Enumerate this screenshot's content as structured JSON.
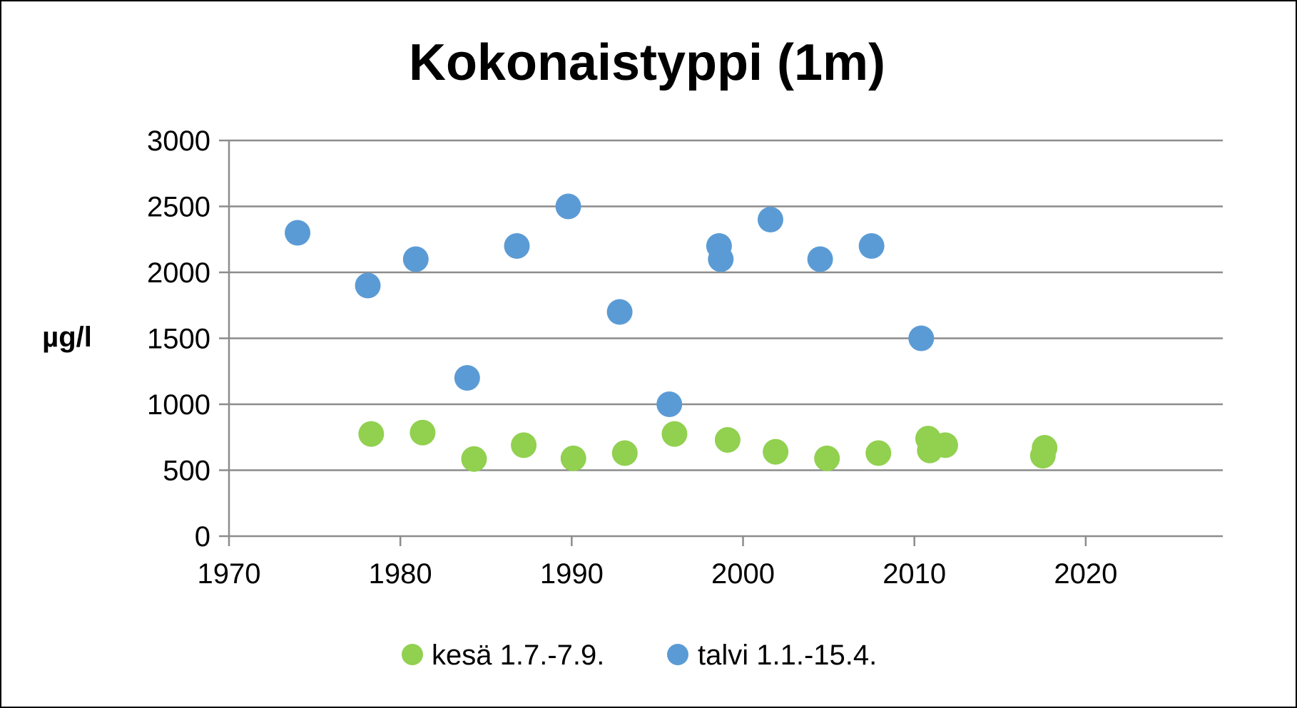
{
  "chart_data": {
    "type": "scatter",
    "title": "Kokonaistyppi (1m)",
    "xlabel": "",
    "ylabel": "µg/l",
    "xlim": [
      1970,
      2028
    ],
    "ylim": [
      0,
      3000
    ],
    "x_ticks": [
      1970,
      1980,
      1990,
      2000,
      2010,
      2020
    ],
    "y_ticks": [
      0,
      500,
      1000,
      1500,
      2000,
      2500,
      3000
    ],
    "grid": true,
    "legend_position": "bottom",
    "series": [
      {
        "name": "kesä 1.7.-7.9.",
        "color": "#92D050",
        "points": [
          {
            "x": 1978.3,
            "y": 775
          },
          {
            "x": 1981.3,
            "y": 785
          },
          {
            "x": 1984.3,
            "y": 585
          },
          {
            "x": 1987.2,
            "y": 690
          },
          {
            "x": 1990.1,
            "y": 590
          },
          {
            "x": 1993.1,
            "y": 630
          },
          {
            "x": 1996.0,
            "y": 775
          },
          {
            "x": 1999.1,
            "y": 730
          },
          {
            "x": 2001.9,
            "y": 640
          },
          {
            "x": 2004.9,
            "y": 590
          },
          {
            "x": 2007.9,
            "y": 630
          },
          {
            "x": 2010.8,
            "y": 740
          },
          {
            "x": 2010.9,
            "y": 650
          },
          {
            "x": 2011.8,
            "y": 690
          },
          {
            "x": 2017.6,
            "y": 670
          },
          {
            "x": 2017.5,
            "y": 610
          }
        ]
      },
      {
        "name": "talvi 1.1.-15.4.",
        "color": "#5B9BD5",
        "points": [
          {
            "x": 1974.0,
            "y": 2300
          },
          {
            "x": 1978.1,
            "y": 1900
          },
          {
            "x": 1980.9,
            "y": 2100
          },
          {
            "x": 1983.9,
            "y": 1200
          },
          {
            "x": 1986.8,
            "y": 2200
          },
          {
            "x": 1989.8,
            "y": 2500
          },
          {
            "x": 1992.8,
            "y": 1700
          },
          {
            "x": 1995.7,
            "y": 1000
          },
          {
            "x": 1998.6,
            "y": 2200
          },
          {
            "x": 1998.7,
            "y": 2100
          },
          {
            "x": 2001.6,
            "y": 2400
          },
          {
            "x": 2004.5,
            "y": 2100
          },
          {
            "x": 2007.5,
            "y": 2200
          },
          {
            "x": 2010.4,
            "y": 1500
          }
        ]
      }
    ]
  }
}
